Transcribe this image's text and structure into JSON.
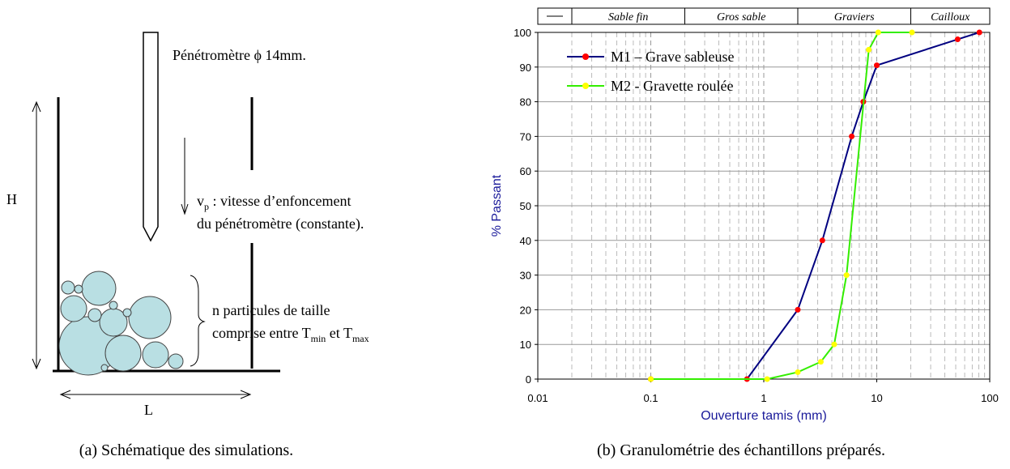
{
  "figure_a": {
    "penetrometer": "Pénétromètre ϕ 14mm.",
    "speed_symbol": "v",
    "speed_sub": "p",
    "speed_line1": " : vitesse d’enfoncement",
    "speed_line2": "du pénétromètre (constante).",
    "particles_line1": "n particules de taille",
    "particles_line2": "comprise entre T",
    "tmin_sub": "min",
    "and_t": " et T",
    "tmax_sub": "max",
    "height": "H",
    "width": "L",
    "caption": "(a) Schématique des simulations."
  },
  "chart_data": {
    "type": "line",
    "caption": "(b) Granulométrie des échantillons préparés.",
    "xlabel": "Ouverture tamis (mm)",
    "ylabel": "% Passant",
    "xscale": "log",
    "xlim": [
      0.01,
      100
    ],
    "xticks": [
      0.01,
      0.1,
      1,
      10,
      100
    ],
    "ylim": [
      0,
      100
    ],
    "yticks": [
      0,
      10,
      20,
      30,
      40,
      50,
      60,
      70,
      80,
      90,
      100
    ],
    "grid": true,
    "legend": "upper left",
    "size_classes": {
      "edges": [
        0.01,
        0.02,
        0.2,
        2,
        20,
        100
      ],
      "labels": [
        null,
        "Sable fin",
        "Gros sable",
        "Graviers",
        "Cailloux"
      ]
    },
    "series": [
      {
        "name": "M1 – Grave sableuse",
        "color": "#000080",
        "marker_color": "#ff0000",
        "x": [
          0.1,
          0.71,
          2,
          3.3,
          6,
          7.6,
          10,
          52,
          81
        ],
        "values": [
          0,
          0,
          20,
          40,
          70,
          80,
          90.5,
          98,
          100
        ]
      },
      {
        "name": "M2 - Gravette roulée",
        "color": "#33ee00",
        "marker_color": "#ffff00",
        "x": [
          0.1,
          1.07,
          2,
          3.2,
          4.2,
          5.4,
          8.5,
          10.3,
          20.5
        ],
        "values": [
          0,
          0,
          2,
          5,
          10,
          30,
          95,
          100,
          100
        ]
      }
    ]
  }
}
